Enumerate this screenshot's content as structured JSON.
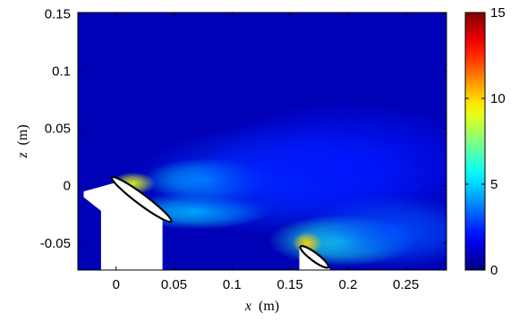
{
  "chart_data": {
    "type": "heatmap",
    "title": "",
    "xlabel_var": "x",
    "xlabel_unit": "(m)",
    "ylabel_var": "z",
    "ylabel_unit": "(m)",
    "xlim": [
      -0.033,
      0.285
    ],
    "ylim": [
      -0.0735,
      0.151
    ],
    "x_ticks": [
      {
        "value": 0,
        "label": "0"
      },
      {
        "value": 0.05,
        "label": "0.05"
      },
      {
        "value": 0.1,
        "label": "0.1"
      },
      {
        "value": 0.15,
        "label": "0.15"
      },
      {
        "value": 0.2,
        "label": "0.2"
      },
      {
        "value": 0.25,
        "label": "0.25"
      }
    ],
    "y_ticks": [
      {
        "value": 0.15,
        "label": "0.15"
      },
      {
        "value": 0.1,
        "label": "0.1"
      },
      {
        "value": 0.05,
        "label": "0.05"
      },
      {
        "value": 0,
        "label": "0"
      },
      {
        "value": -0.05,
        "label": "-0.05"
      }
    ],
    "colorbar": {
      "colormap": "jet",
      "min": 0,
      "max": 15,
      "ticks": [
        {
          "value": 15,
          "label": "15"
        },
        {
          "value": 10,
          "label": "10"
        },
        {
          "value": 5,
          "label": "5"
        },
        {
          "value": 0,
          "label": "0"
        }
      ]
    },
    "background_value": 0.8,
    "field_features": [
      {
        "x": 0.015,
        "z": 0.002,
        "sx": 0.012,
        "sz": 0.006,
        "value": 9
      },
      {
        "x": 0.08,
        "z": 0.005,
        "sx": 0.035,
        "sz": 0.012,
        "value": 5.5
      },
      {
        "x": 0.07,
        "z": -0.022,
        "sx": 0.04,
        "sz": 0.01,
        "value": 5
      },
      {
        "x": 0.14,
        "z": 0.005,
        "sx": 0.08,
        "sz": 0.03,
        "value": 2.6
      },
      {
        "x": 0.2,
        "z": 0.018,
        "sx": 0.08,
        "sz": 0.035,
        "value": 2.2
      },
      {
        "x": 0.195,
        "z": -0.048,
        "sx": 0.04,
        "sz": 0.014,
        "value": 6
      },
      {
        "x": 0.165,
        "z": -0.05,
        "sx": 0.008,
        "sz": 0.006,
        "value": 10
      },
      {
        "x": 0.24,
        "z": -0.04,
        "sx": 0.05,
        "sz": 0.02,
        "value": 3
      }
    ],
    "masked_regions": [
      {
        "name": "upstream-support",
        "outline": [
          [
            -0.028,
            -0.005
          ],
          [
            -0.003,
            0.002
          ],
          [
            0.01,
            0.0
          ],
          [
            0.02,
            -0.008
          ],
          [
            0.04,
            -0.027
          ],
          [
            0.04,
            -0.0735
          ],
          [
            -0.013,
            -0.0735
          ],
          [
            -0.013,
            -0.022
          ],
          [
            -0.028,
            -0.01
          ]
        ]
      },
      {
        "name": "downstream-support",
        "outline": [
          [
            0.158,
            -0.052
          ],
          [
            0.168,
            -0.055
          ],
          [
            0.185,
            -0.0735
          ],
          [
            0.158,
            -0.0735
          ]
        ]
      }
    ],
    "foils": [
      {
        "name": "foil-1",
        "cx": 0.022,
        "cz": -0.012,
        "half_length": 0.032,
        "angle_deg": -37,
        "thickness": 0.0045
      },
      {
        "name": "foil-2",
        "cx": 0.171,
        "cz": -0.062,
        "half_length": 0.015,
        "angle_deg": -37,
        "thickness": 0.0035
      }
    ]
  }
}
